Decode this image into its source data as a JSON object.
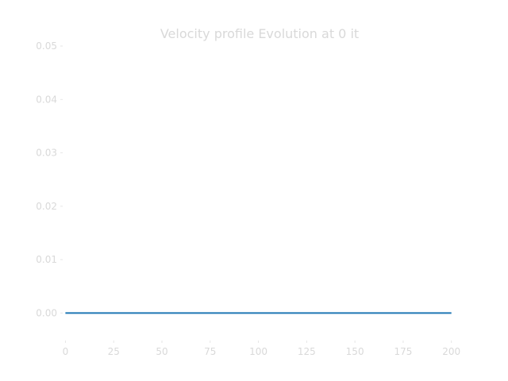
{
  "chart_data": {
    "type": "line",
    "title": "Velocity profile Evolution at 0 it",
    "xlabel": "",
    "ylabel": "",
    "xlim": [
      -1,
      203
    ],
    "ylim": [
      -0.005,
      0.05
    ],
    "xticks": [
      0,
      25,
      50,
      75,
      100,
      125,
      150,
      175,
      200
    ],
    "xtick_labels": [
      "0",
      "25",
      "50",
      "75",
      "100",
      "125",
      "150",
      "175",
      "200"
    ],
    "yticks": [
      0.0,
      0.01,
      0.02,
      0.03,
      0.04,
      0.05
    ],
    "ytick_labels": [
      "0.00",
      "0.01",
      "0.02",
      "0.03",
      "0.04",
      "0.05"
    ],
    "grid": false,
    "legend": "none",
    "series": [
      {
        "color": "#1f77b4",
        "x": [
          0,
          200
        ],
        "y": [
          0.0,
          0.0
        ]
      }
    ]
  }
}
